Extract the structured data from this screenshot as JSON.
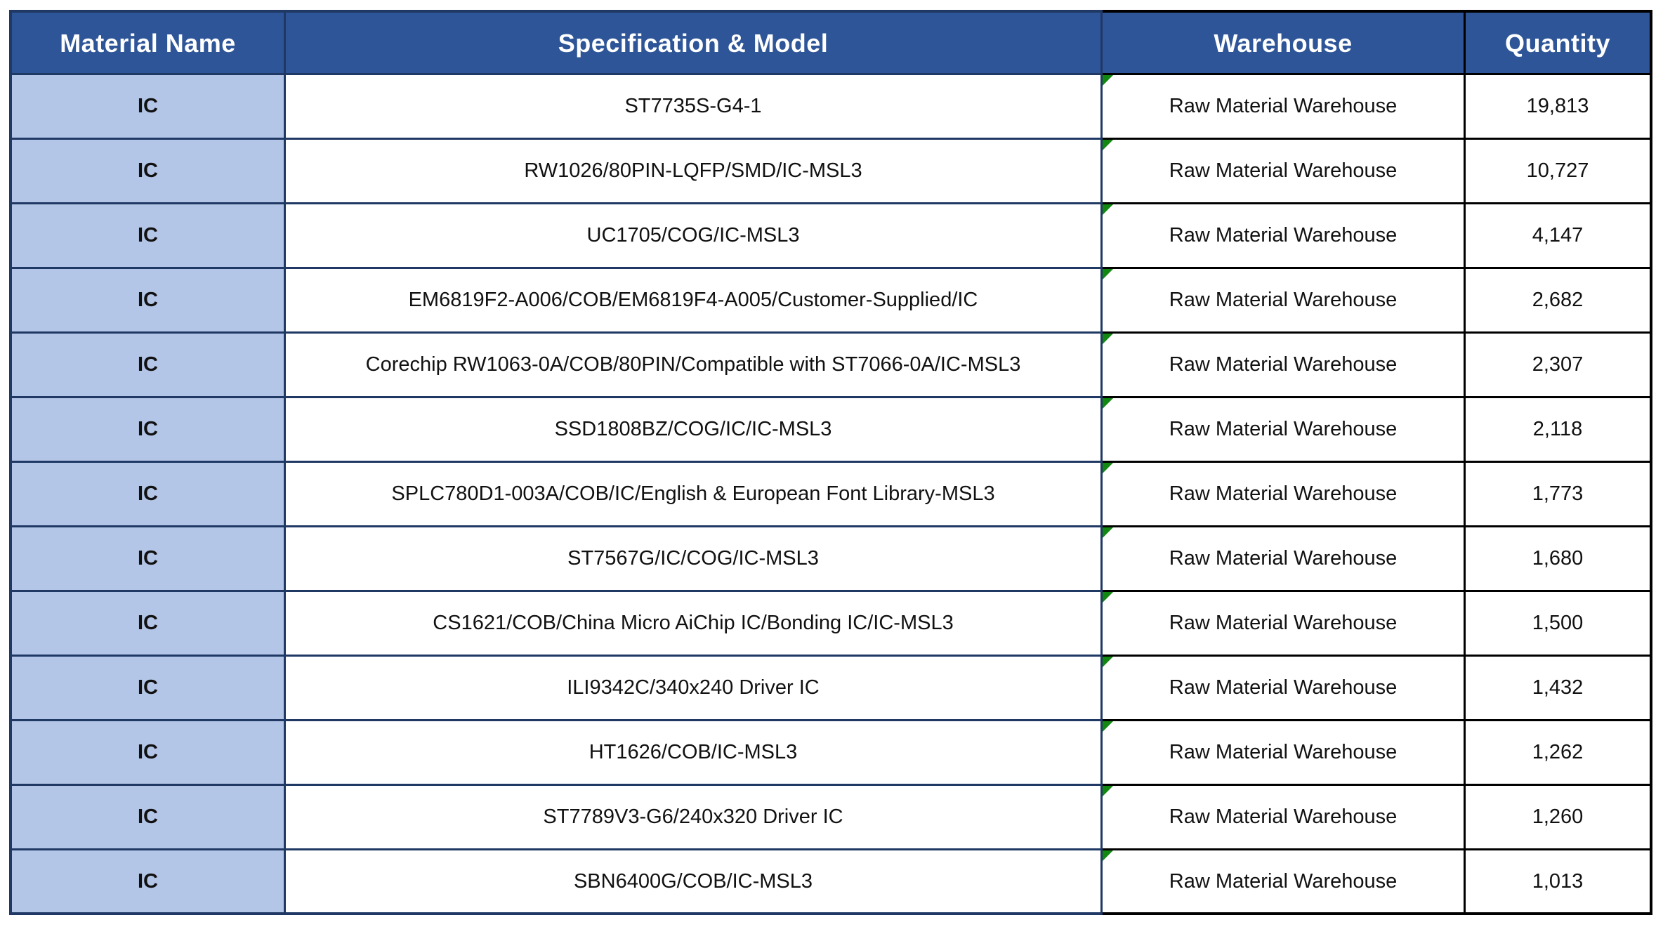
{
  "table": {
    "columns": [
      {
        "label": "Material Name"
      },
      {
        "label": "Specification & Model"
      },
      {
        "label": "Warehouse"
      },
      {
        "label": "Quantity"
      }
    ],
    "rows": [
      {
        "material": "IC",
        "spec": "ST7735S-G4-1",
        "warehouse": "Raw Material Warehouse",
        "quantity": "19,813"
      },
      {
        "material": "IC",
        "spec": "RW1026/80PIN-LQFP/SMD/IC-MSL3",
        "warehouse": "Raw Material Warehouse",
        "quantity": "10,727"
      },
      {
        "material": "IC",
        "spec": "UC1705/COG/IC-MSL3",
        "warehouse": "Raw Material Warehouse",
        "quantity": "4,147"
      },
      {
        "material": "IC",
        "spec": "EM6819F2-A006/COB/EM6819F4-A005/Customer-Supplied/IC",
        "warehouse": "Raw Material Warehouse",
        "quantity": "2,682"
      },
      {
        "material": "IC",
        "spec": "Corechip RW1063-0A/COB/80PIN/Compatible with ST7066-0A/IC-MSL3",
        "warehouse": "Raw Material Warehouse",
        "quantity": "2,307"
      },
      {
        "material": "IC",
        "spec": "SSD1808BZ/COG/IC/IC-MSL3",
        "warehouse": "Raw Material Warehouse",
        "quantity": "2,118"
      },
      {
        "material": "IC",
        "spec": "SPLC780D1-003A/COB/IC/English & European Font Library-MSL3",
        "warehouse": "Raw Material Warehouse",
        "quantity": "1,773"
      },
      {
        "material": "IC",
        "spec": "ST7567G/IC/COG/IC-MSL3",
        "warehouse": "Raw Material Warehouse",
        "quantity": "1,680"
      },
      {
        "material": "IC",
        "spec": "CS1621/COB/China Micro AiChip IC/Bonding IC/IC-MSL3",
        "warehouse": "Raw Material Warehouse",
        "quantity": "1,500"
      },
      {
        "material": "IC",
        "spec": "ILI9342C/340x240 Driver IC",
        "warehouse": "Raw Material Warehouse",
        "quantity": "1,432"
      },
      {
        "material": "IC",
        "spec": "HT1626/COB/IC-MSL3",
        "warehouse": "Raw Material Warehouse",
        "quantity": "1,262"
      },
      {
        "material": "IC",
        "spec": "ST7789V3-G6/240x320 Driver IC",
        "warehouse": "Raw Material Warehouse",
        "quantity": "1,260"
      },
      {
        "material": "IC",
        "spec": "SBN6400G/COB/IC-MSL3",
        "warehouse": "Raw Material Warehouse",
        "quantity": "1,013"
      }
    ]
  },
  "colors": {
    "header_bg": "#2E5597",
    "header_text": "#FFFFFF",
    "material_cell_bg": "#B4C6E7",
    "border_navy": "#1F3864",
    "border_dark": "#000000",
    "error_indicator_green": "#128712"
  }
}
